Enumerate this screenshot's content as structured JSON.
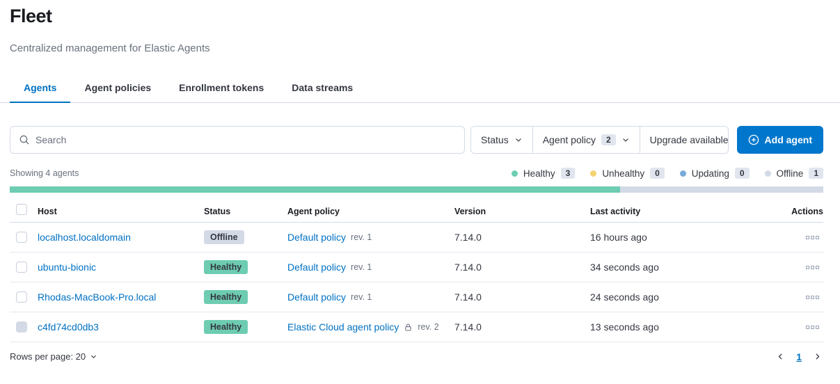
{
  "header": {
    "title": "Fleet",
    "subtitle": "Centralized management for Elastic Agents",
    "tabs": [
      {
        "label": "Agents",
        "active": true
      },
      {
        "label": "Agent policies",
        "active": false
      },
      {
        "label": "Enrollment tokens",
        "active": false
      },
      {
        "label": "Data streams",
        "active": false
      }
    ]
  },
  "toolbar": {
    "search_placeholder": "Search",
    "filters": {
      "status_label": "Status",
      "agent_policy_label": "Agent policy",
      "agent_policy_count": "2",
      "upgrade_label": "Upgrade available"
    },
    "add_agent_label": "Add agent"
  },
  "summary": {
    "showing_text": "Showing 4 agents",
    "legend": [
      {
        "label": "Healthy",
        "count": "3",
        "color": "#6dccb1"
      },
      {
        "label": "Unhealthy",
        "count": "0",
        "color": "#f3d371"
      },
      {
        "label": "Updating",
        "count": "0",
        "color": "#79aad9"
      },
      {
        "label": "Offline",
        "count": "1",
        "color": "#d3dae6"
      }
    ],
    "health_bar": {
      "healthy_pct": 75,
      "healthy_color": "#6dccb1",
      "offline_pct": 25,
      "offline_color": "#d3dae6"
    }
  },
  "table": {
    "columns": {
      "host": "Host",
      "status": "Status",
      "policy": "Agent policy",
      "version": "Version",
      "last_activity": "Last activity",
      "actions": "Actions"
    },
    "rows": [
      {
        "host": "localhost.localdomain",
        "status": "Offline",
        "status_key": "offline",
        "policy": "Default policy",
        "rev": "rev. 1",
        "version": "7.14.0",
        "last_activity": "16 hours ago",
        "checkbox_disabled": "false"
      },
      {
        "host": "ubuntu-bionic",
        "status": "Healthy",
        "status_key": "healthy",
        "policy": "Default policy",
        "rev": "rev. 1",
        "version": "7.14.0",
        "last_activity": "34 seconds ago",
        "checkbox_disabled": "false"
      },
      {
        "host": "Rhodas-MacBook-Pro.local",
        "status": "Healthy",
        "status_key": "healthy",
        "policy": "Default policy",
        "rev": "rev. 1",
        "version": "7.14.0",
        "last_activity": "24 seconds ago",
        "checkbox_disabled": "false"
      },
      {
        "host": "c4fd74cd0db3",
        "status": "Healthy",
        "status_key": "healthy",
        "policy": "Elastic Cloud agent policy",
        "rev": "rev. 2",
        "version": "7.14.0",
        "last_activity": "13 seconds ago",
        "checkbox_disabled": "true"
      }
    ]
  },
  "footer": {
    "rows_per_page_label": "Rows per page: 20",
    "current_page": "1"
  },
  "colors": {
    "accent_blue": "#0071c2",
    "primary_button": "#0077cc",
    "healthy": "#6dccb1",
    "unhealthy": "#f3d371",
    "updating": "#79aad9",
    "offline": "#d3dae6",
    "border": "#d3dae6",
    "muted_text": "#69707d"
  }
}
